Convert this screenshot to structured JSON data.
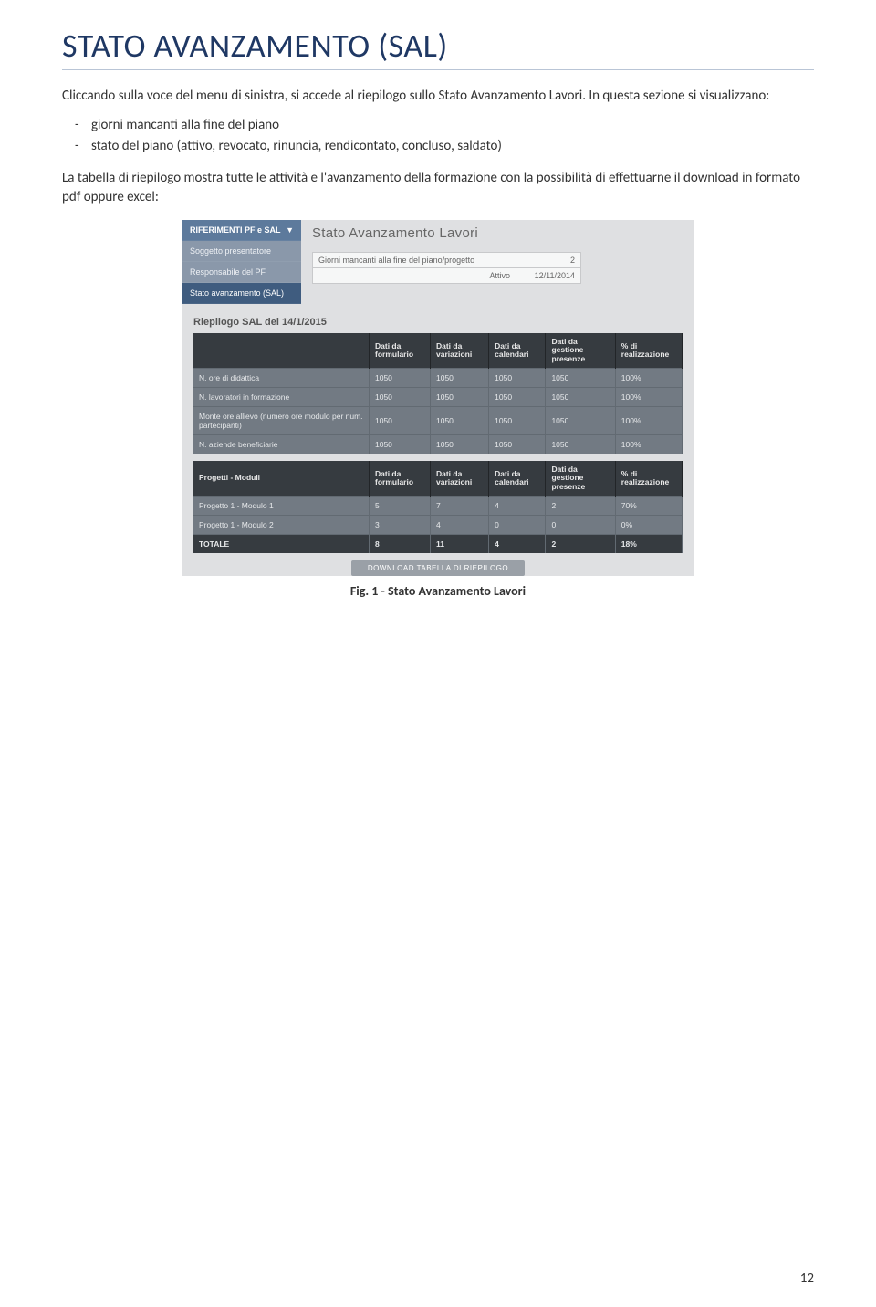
{
  "title": "STATO AVANZAMENTO (SAL)",
  "title_color": "#1f3864",
  "rule_color": "#b9c5d6",
  "intro_text": "Cliccando sulla voce del menu di sinistra, si accede al riepilogo sullo Stato Avanzamento Lavori. In questa sezione si visualizzano:",
  "bullets": [
    "giorni mancanti alla fine del piano",
    "stato del piano (attivo, revocato, rinuncia, rendicontato, concluso, saldato)"
  ],
  "para2": "La tabella di riepilogo mostra tutte le attività e l'avanzamento della formazione con la possibilità di effettuarne il download in formato pdf oppure excel:",
  "caption": "Fig. 1  - Stato Avanzamento Lavori",
  "page_number": "12",
  "screenshot": {
    "bg_color": "#dfe0e2",
    "sidebar": {
      "header_bg": "#5d7a9c",
      "item_bg": "#8a98aa",
      "active_bg": "#3f5c7f",
      "text_color": "#eef1f5",
      "header": "RIFERIMENTI PF e SAL",
      "chevron": "▼",
      "items": [
        {
          "label": "Soggetto presentatore",
          "active": false
        },
        {
          "label": "Responsabile del PF",
          "active": false
        },
        {
          "label": "Stato avanzamento (SAL)",
          "active": true
        }
      ]
    },
    "main_title": "Stato Avanzamento Lavori",
    "mini_rows": [
      {
        "label": "Giorni mancanti alla fine del piano/progetto",
        "value": "2"
      },
      {
        "label": "Attivo",
        "value": "12/11/2014"
      }
    ],
    "riepilogo_title": "Riepilogo SAL del 14/1/2015",
    "table1": {
      "header_bg": "#363b40",
      "row_bg": "#727a83",
      "columns": [
        "",
        "Dati da formulario",
        "Dati da variazioni",
        "Dati da calendari",
        "Dati da gestione presenze",
        "% di realizzazione"
      ],
      "rows": [
        [
          "N. ore di didattica",
          "1050",
          "1050",
          "1050",
          "1050",
          "100%"
        ],
        [
          "N. lavoratori in formazione",
          "1050",
          "1050",
          "1050",
          "1050",
          "100%"
        ],
        [
          "Monte ore allievo (numero ore modulo per num. partecipanti)",
          "1050",
          "1050",
          "1050",
          "1050",
          "100%"
        ],
        [
          "N. aziende beneficiarie",
          "1050",
          "1050",
          "1050",
          "1050",
          "100%"
        ]
      ]
    },
    "table2": {
      "columns": [
        "Progetti - Moduli",
        "Dati da formulario",
        "Dati da variazioni",
        "Dati da calendari",
        "Dati da gestione presenze",
        "% di realizzazione"
      ],
      "rows": [
        [
          "Progetto 1 - Modulo 1",
          "5",
          "7",
          "4",
          "2",
          "70%"
        ],
        [
          "Progetto 1 - Modulo 2",
          "3",
          "4",
          "0",
          "0",
          "0%"
        ]
      ],
      "totale": [
        "TOTALE",
        "8",
        "11",
        "4",
        "2",
        "18%"
      ]
    },
    "download_button": "DOWNLOAD TABELLA DI RIEPILOGO"
  }
}
